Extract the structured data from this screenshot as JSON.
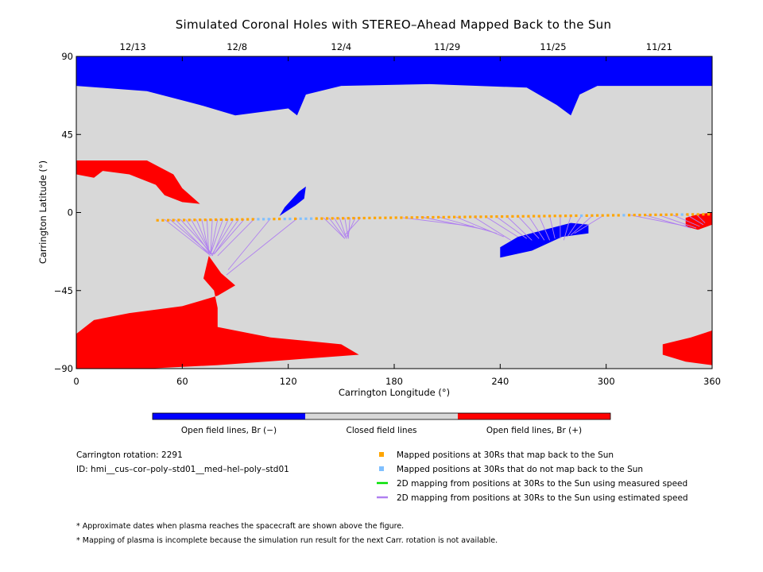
{
  "chart_data": {
    "type": "map",
    "title": "Simulated Coronal Holes with STEREO–Ahead Mapped Back to the Sun",
    "xlabel": "Carrington Longitude (°)",
    "ylabel": "Carrington Latitude (°)",
    "xlim": [
      0,
      360
    ],
    "ylim": [
      -90,
      90
    ],
    "x_ticks": [
      "0",
      "60",
      "120",
      "180",
      "240",
      "300",
      "360"
    ],
    "y_ticks": [
      "90",
      "45",
      "0",
      "−45",
      "−90"
    ],
    "top_date_ticks": [
      {
        "lon": 32,
        "label": "12/13"
      },
      {
        "lon": 91,
        "label": "12/8"
      },
      {
        "lon": 150,
        "label": "12/4"
      },
      {
        "lon": 210,
        "label": "11/29"
      },
      {
        "lon": 270,
        "label": "11/25"
      },
      {
        "lon": 330,
        "label": "11/21"
      }
    ],
    "colors": {
      "open_negative": "#0000ff",
      "closed": "#d8d8d8",
      "open_positive": "#ff0000",
      "mapped_back": "#ffa500",
      "not_mapped": "#80c0ff",
      "measured_speed": "#00e000",
      "estimated_speed": "#b080f0"
    },
    "colorbar": [
      {
        "label": "Open field lines, Br (−)",
        "color": "#0000ff"
      },
      {
        "label": "Closed field lines",
        "color": "#d8d8d8"
      },
      {
        "label": "Open field lines, Br (+)",
        "color": "#ff0000"
      }
    ],
    "legend": [
      {
        "type": "square",
        "color": "#ffa500",
        "label": "Mapped positions at 30Rs that map back to the Sun"
      },
      {
        "type": "square",
        "color": "#80c0ff",
        "label": "Mapped positions at 30Rs that do not map back to the Sun"
      },
      {
        "type": "line",
        "color": "#00e000",
        "label": "2D mapping from positions at 30Rs to the Sun using measured speed"
      },
      {
        "type": "line",
        "color": "#b080f0",
        "label": "2D mapping from positions at 30Rs to the Sun using estimated speed"
      }
    ],
    "legend_placement": "bottom-right",
    "carrington_rotation": "Carrington rotation: 2291",
    "run_id": "ID: hmi__cus–cor–poly–std01__med–hel–poly–std01",
    "notes": [
      "* Approximate dates when plasma reaches the spacecraft are shown above the figure.",
      "* Mapping of plasma is incomplete because the simulation run result for the next Carr. rotation is not available."
    ],
    "mapped_points": {
      "lon_start": 46,
      "lon_end": 359,
      "lon_step": 3.0,
      "lat_start": -4.5,
      "lat_end": -1.0,
      "not_mapped_lons": [
        104,
        106,
        108,
        119,
        122,
        127,
        130,
        133,
        287,
        309,
        342
      ]
    },
    "mapping_lines": [
      {
        "from": [
          50,
          -4
        ],
        "to": [
          75,
          -24
        ]
      },
      {
        "from": [
          53,
          -4
        ],
        "to": [
          76,
          -24
        ]
      },
      {
        "from": [
          56,
          -4
        ],
        "to": [
          76,
          -25
        ]
      },
      {
        "from": [
          59,
          -4
        ],
        "to": [
          77,
          -24
        ]
      },
      {
        "from": [
          62,
          -4
        ],
        "to": [
          76,
          -24
        ]
      },
      {
        "from": [
          65,
          -4
        ],
        "to": [
          77,
          -25
        ]
      },
      {
        "from": [
          68,
          -4
        ],
        "to": [
          76,
          -24
        ]
      },
      {
        "from": [
          71,
          -4
        ],
        "to": [
          75,
          -23
        ]
      },
      {
        "from": [
          74,
          -4
        ],
        "to": [
          75,
          -24
        ]
      },
      {
        "from": [
          77,
          -4
        ],
        "to": [
          76,
          -24
        ]
      },
      {
        "from": [
          80,
          -4
        ],
        "to": [
          76,
          -24
        ]
      },
      {
        "from": [
          83,
          -4
        ],
        "to": [
          76,
          -24
        ]
      },
      {
        "from": [
          86,
          -4
        ],
        "to": [
          77,
          -25
        ]
      },
      {
        "from": [
          89,
          -4
        ],
        "to": [
          77,
          -24
        ]
      },
      {
        "from": [
          92,
          -4
        ],
        "to": [
          78,
          -24
        ]
      },
      {
        "from": [
          95,
          -4
        ],
        "to": [
          78,
          -24
        ]
      },
      {
        "from": [
          101,
          -3.5
        ],
        "to": [
          80,
          -25
        ]
      },
      {
        "from": [
          110,
          -3.5
        ],
        "to": [
          86,
          -33
        ]
      },
      {
        "from": [
          125,
          -3.5
        ],
        "to": [
          85,
          -36
        ]
      },
      {
        "from": [
          140,
          -3
        ],
        "to": [
          152,
          -15
        ]
      },
      {
        "from": [
          143,
          -3
        ],
        "to": [
          152,
          -15
        ]
      },
      {
        "from": [
          146,
          -3
        ],
        "to": [
          153,
          -15
        ]
      },
      {
        "from": [
          149,
          -3
        ],
        "to": [
          153,
          -15
        ]
      },
      {
        "from": [
          152,
          -3
        ],
        "to": [
          154,
          -15
        ]
      },
      {
        "from": [
          155,
          -3
        ],
        "to": [
          154,
          -15
        ]
      },
      {
        "from": [
          158,
          -3
        ],
        "to": [
          153,
          -14
        ]
      },
      {
        "from": [
          161,
          -3
        ],
        "to": [
          152,
          -13
        ]
      },
      {
        "from": [
          185,
          -3
        ],
        "to": [
          225,
          -8
        ]
      },
      {
        "from": [
          195,
          -2.5
        ],
        "to": [
          232,
          -10
        ]
      },
      {
        "from": [
          205,
          -2.5
        ],
        "to": [
          238,
          -12
        ]
      },
      {
        "from": [
          215,
          -2.5
        ],
        "to": [
          242,
          -14
        ]
      },
      {
        "from": [
          225,
          -2.5
        ],
        "to": [
          246,
          -16
        ]
      },
      {
        "from": [
          232,
          -2.5
        ],
        "to": [
          250,
          -14
        ]
      },
      {
        "from": [
          238,
          -2.5
        ],
        "to": [
          255,
          -15
        ]
      },
      {
        "from": [
          244,
          -2.5
        ],
        "to": [
          258,
          -16
        ]
      },
      {
        "from": [
          250,
          -2
        ],
        "to": [
          262,
          -15
        ]
      },
      {
        "from": [
          256,
          -2
        ],
        "to": [
          265,
          -16
        ]
      },
      {
        "from": [
          262,
          -2
        ],
        "to": [
          268,
          -16
        ]
      },
      {
        "from": [
          268,
          -2
        ],
        "to": [
          271,
          -15
        ]
      },
      {
        "from": [
          274,
          -2
        ],
        "to": [
          274,
          -15
        ]
      },
      {
        "from": [
          280,
          -2
        ],
        "to": [
          276,
          -16
        ]
      },
      {
        "from": [
          286,
          -2
        ],
        "to": [
          278,
          -14
        ]
      },
      {
        "from": [
          292,
          -2
        ],
        "to": [
          280,
          -13
        ]
      },
      {
        "from": [
          298,
          -2
        ],
        "to": [
          282,
          -12
        ]
      },
      {
        "from": [
          314,
          -1.5
        ],
        "to": [
          346,
          -8
        ]
      },
      {
        "from": [
          322,
          -1.5
        ],
        "to": [
          348,
          -9
        ]
      },
      {
        "from": [
          330,
          -1.5
        ],
        "to": [
          351,
          -9
        ]
      },
      {
        "from": [
          338,
          -1.5
        ],
        "to": [
          353,
          -8
        ]
      },
      {
        "from": [
          345,
          -1
        ],
        "to": [
          355,
          -7
        ]
      },
      {
        "from": [
          351,
          -1
        ],
        "to": [
          356,
          -6
        ]
      }
    ],
    "regions": [
      {
        "name": "north-polar-negative-hole",
        "polarity": "negative",
        "points": [
          [
            0,
            90
          ],
          [
            360,
            90
          ],
          [
            360,
            73
          ],
          [
            295,
            73
          ],
          [
            285,
            68
          ],
          [
            280,
            56
          ],
          [
            272,
            62
          ],
          [
            255,
            72
          ],
          [
            200,
            74
          ],
          [
            150,
            73
          ],
          [
            130,
            68
          ],
          [
            125,
            56
          ],
          [
            120,
            60
          ],
          [
            90,
            56
          ],
          [
            70,
            62
          ],
          [
            40,
            70
          ],
          [
            0,
            73
          ]
        ]
      },
      {
        "name": "equatorial-negative-hole-340",
        "polarity": "negative",
        "points": [
          [
            240,
            -20
          ],
          [
            250,
            -14
          ],
          [
            265,
            -10
          ],
          [
            280,
            -6
          ],
          [
            290,
            -7
          ],
          [
            290,
            -12
          ],
          [
            275,
            -14
          ],
          [
            258,
            -22
          ],
          [
            240,
            -26
          ]
        ]
      },
      {
        "name": "low-latitude-negative-finger-125",
        "polarity": "negative",
        "points": [
          [
            115,
            -2
          ],
          [
            118,
            3
          ],
          [
            126,
            12
          ],
          [
            130,
            15
          ],
          [
            129,
            8
          ],
          [
            124,
            4
          ],
          [
            118,
            0
          ]
        ]
      },
      {
        "name": "northwest-positive-hole",
        "polarity": "positive",
        "points": [
          [
            0,
            30
          ],
          [
            20,
            30
          ],
          [
            40,
            30
          ],
          [
            55,
            22
          ],
          [
            60,
            14
          ],
          [
            70,
            5
          ],
          [
            60,
            6
          ],
          [
            50,
            10
          ],
          [
            45,
            16
          ],
          [
            30,
            22
          ],
          [
            15,
            24
          ],
          [
            10,
            20
          ],
          [
            0,
            22
          ]
        ]
      },
      {
        "name": "southwest-positive-hole",
        "polarity": "positive",
        "points": [
          [
            75,
            -25
          ],
          [
            82,
            -35
          ],
          [
            90,
            -42
          ],
          [
            80,
            -48
          ],
          [
            60,
            -54
          ],
          [
            30,
            -58
          ],
          [
            10,
            -62
          ],
          [
            0,
            -70
          ],
          [
            0,
            -90
          ],
          [
            40,
            -90
          ],
          [
            80,
            -88
          ],
          [
            120,
            -85
          ],
          [
            160,
            -82
          ],
          [
            150,
            -76
          ],
          [
            110,
            -72
          ],
          [
            80,
            -66
          ],
          [
            80,
            -55
          ],
          [
            78,
            -45
          ],
          [
            72,
            -38
          ]
        ]
      },
      {
        "name": "southeast-positive-hole",
        "polarity": "positive",
        "points": [
          [
            332,
            -76
          ],
          [
            348,
            -72
          ],
          [
            360,
            -68
          ],
          [
            360,
            -88
          ],
          [
            345,
            -86
          ],
          [
            332,
            -82
          ]
        ]
      },
      {
        "name": "east-limb-positive-hole",
        "polarity": "positive",
        "points": [
          [
            345,
            -3
          ],
          [
            352,
            -1
          ],
          [
            360,
            0
          ],
          [
            360,
            -7
          ],
          [
            352,
            -10
          ],
          [
            345,
            -8
          ]
        ]
      }
    ]
  }
}
